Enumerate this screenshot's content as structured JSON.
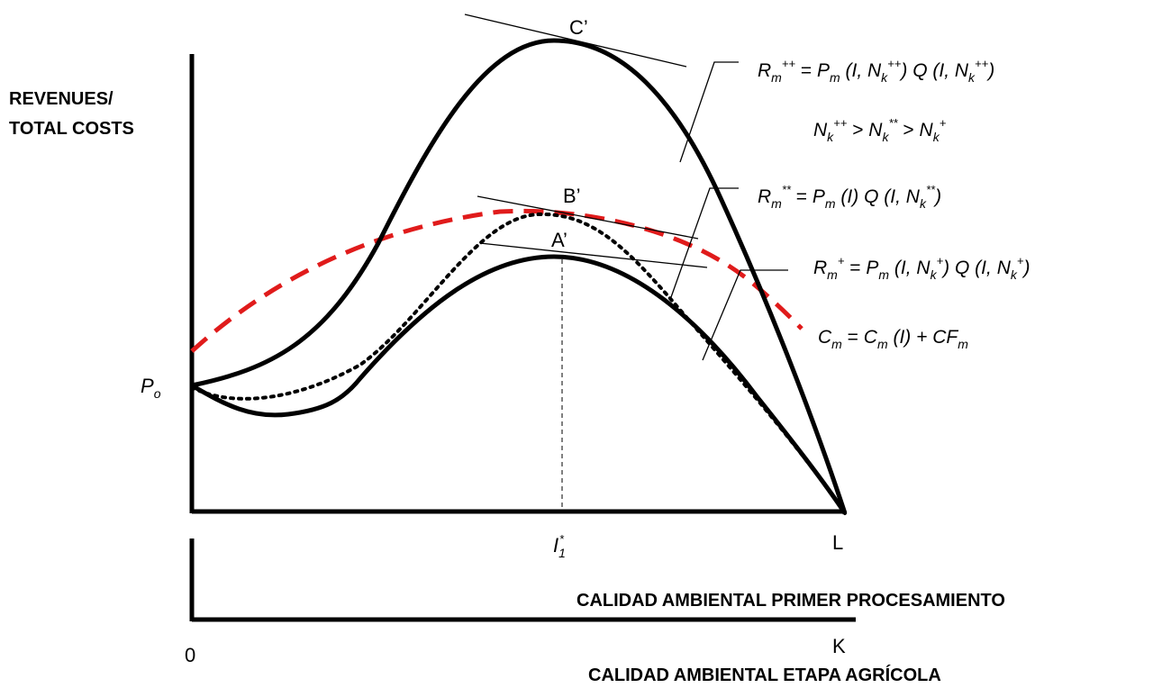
{
  "y_axis_label_line1": "REVENUES/",
  "y_axis_label_line2": "TOTAL COSTS",
  "x_axis_label_primary": "CALIDAD AMBIENTAL PRIMER PROCESAMIENTO",
  "x_axis_label_agricultural": "CALIDAD AMBIENTAL ETAPA AGRÍCOLA",
  "origin_label": "0",
  "end_label_L": "L",
  "end_label_K": "K",
  "p0": {
    "base": "P",
    "sub": "o"
  },
  "optimum": {
    "base": "I",
    "sub": "1",
    "sup": "*"
  },
  "points": {
    "c": "C’",
    "b": "B’",
    "a": "A’"
  },
  "equations": {
    "r_plus_plus": {
      "lhs_base": "R",
      "lhs_sub": "m",
      "lhs_sup": "++",
      "eq": " = ",
      "p_base": "P",
      "p_sub": "m",
      "args1_open": " (I, ",
      "nk_base": "N",
      "nk_sub": "k",
      "nk_sup": "++",
      "args1_close": ") ",
      "q": "Q",
      "args2_open": " (I, ",
      "nk2_base": "N",
      "nk2_sub": "k",
      "nk2_sup": "++",
      "args2_close": ")"
    },
    "inequality": {
      "a_base": "N",
      "a_sub": "k",
      "a_sup": "++",
      "gt1": " > ",
      "b_base": "N",
      "b_sub": "k",
      "b_sup": "**",
      "gt2": " > ",
      "c_base": "N",
      "c_sub": "k",
      "c_sup": "+"
    },
    "r_star_star": {
      "lhs_base": "R",
      "lhs_sub": "m",
      "lhs_sup": "**",
      "eq": " = ",
      "p_base": "P",
      "p_sub": "m",
      "args1": " (I) ",
      "q": "Q",
      "args2_open": " (I, ",
      "nk_base": "N",
      "nk_sub": "k",
      "nk_sup": "**",
      "args2_close": ")"
    },
    "r_plus": {
      "lhs_base": "R",
      "lhs_sub": "m",
      "lhs_sup": "+",
      "eq": " = ",
      "p_base": "P",
      "p_sub": "m",
      "args1_open": " (I, ",
      "nk_base": "N",
      "nk_sub": "k",
      "nk_sup": "+",
      "args1_close": ") ",
      "q": "Q",
      "args2_open": " (I, ",
      "nk2_base": "N",
      "nk2_sub": "k",
      "nk2_sup": "+",
      "args2_close": ")"
    },
    "cost": {
      "lhs_base": "C",
      "lhs_sub": "m",
      "eq": " = ",
      "c_base": "C",
      "c_sub": "m",
      "args": " (I) + ",
      "cf_base": "CF",
      "cf_sub": "m"
    }
  },
  "colors": {
    "curves": "#000000",
    "cost_curve": "#e01b1b"
  }
}
